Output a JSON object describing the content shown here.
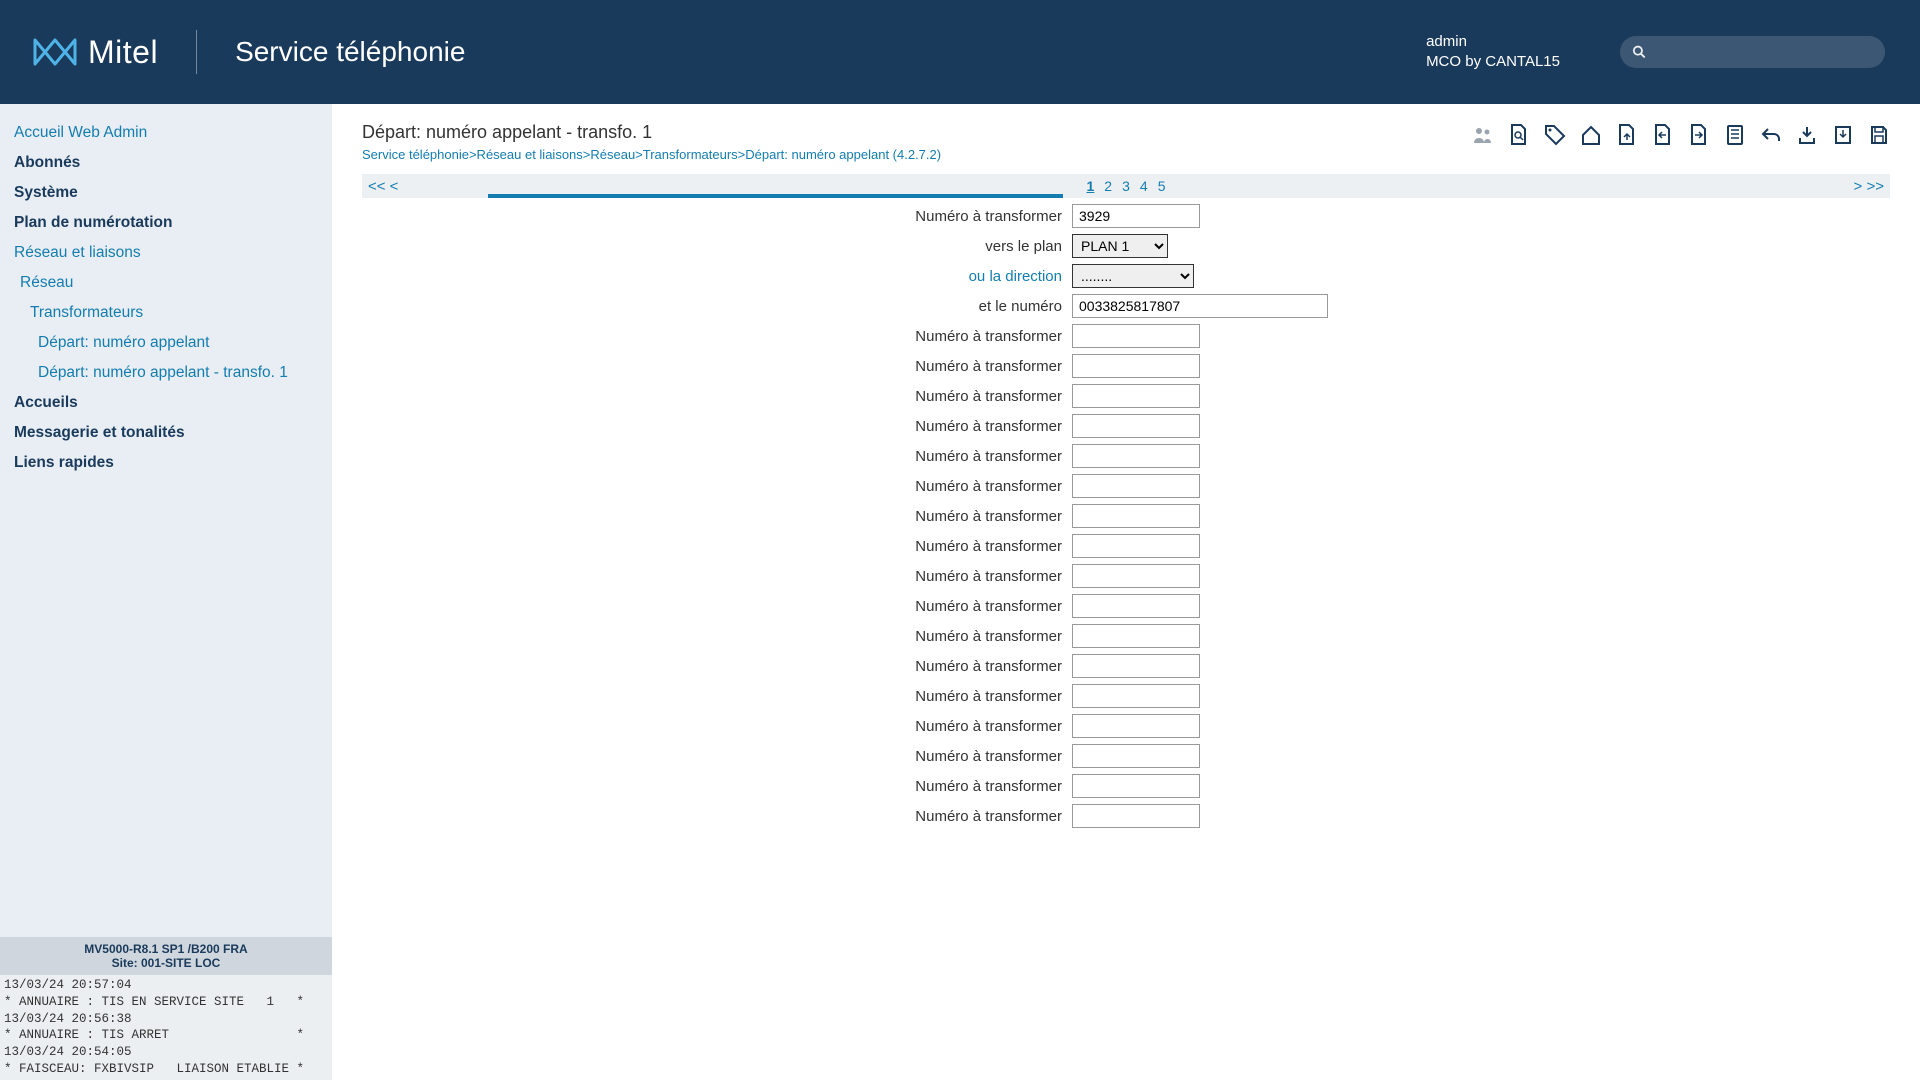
{
  "header": {
    "brand_name": "Mitel",
    "service_title": "Service téléphonie",
    "user_name": "admin",
    "user_org": "MCO by CANTAL15"
  },
  "sidebar": {
    "items": [
      {
        "label": "Accueil Web Admin",
        "kind": "link"
      },
      {
        "label": "Abonnés",
        "kind": "bold"
      },
      {
        "label": "Système",
        "kind": "bold"
      },
      {
        "label": "Plan de numérotation",
        "kind": "bold"
      },
      {
        "label": "Réseau et liaisons",
        "kind": "link"
      },
      {
        "label": "Réseau",
        "kind": "link",
        "indent": 1
      },
      {
        "label": "Transformateurs",
        "kind": "link",
        "indent": 2
      },
      {
        "label": "Départ: numéro appelant",
        "kind": "link",
        "indent": 3
      },
      {
        "label": "Départ: numéro appelant - transfo. 1",
        "kind": "link",
        "indent": 4
      },
      {
        "label": "Accueils",
        "kind": "bold"
      },
      {
        "label": "Messagerie et tonalités",
        "kind": "bold"
      },
      {
        "label": "Liens rapides",
        "kind": "bold"
      }
    ],
    "footer_line1": "MV5000-R8.1 SP1 /B200 FRA",
    "footer_line2": "Site: 001-SITE LOC",
    "log_lines": [
      "13/03/24 20:57:04",
      "* ANNUAIRE : TIS EN SERVICE SITE   1   *",
      "13/03/24 20:56:38",
      "* ANNUAIRE : TIS ARRET                 *",
      "13/03/24 20:54:05",
      "* FAISCEAU: FXBIVSIP   LIAISON ETABLIE *"
    ]
  },
  "page": {
    "title": "Départ: numéro appelant - transfo. 1",
    "breadcrumb": "Service téléphonie>Réseau et liaisons>Réseau>Transformateurs>Départ: numéro appelant (4.2.7.2)"
  },
  "pagination": {
    "first_prev": "<< <",
    "pages": [
      "1",
      "2",
      "3",
      "4",
      "5"
    ],
    "active_index": 0,
    "next_last": "> >>"
  },
  "form": {
    "row1_label": "Numéro à transformer",
    "row1_value": "3929",
    "row2_label": "vers le plan",
    "row2_options": [
      "PLAN 1"
    ],
    "row2_selected": "PLAN 1",
    "row3_label": "ou la direction",
    "row3_options": [
      "........"
    ],
    "row3_selected": "........",
    "row4_label": "et le numéro",
    "row4_value": "0033825817807",
    "repeat_label": "Numéro à transformer",
    "repeat_count": 17
  }
}
